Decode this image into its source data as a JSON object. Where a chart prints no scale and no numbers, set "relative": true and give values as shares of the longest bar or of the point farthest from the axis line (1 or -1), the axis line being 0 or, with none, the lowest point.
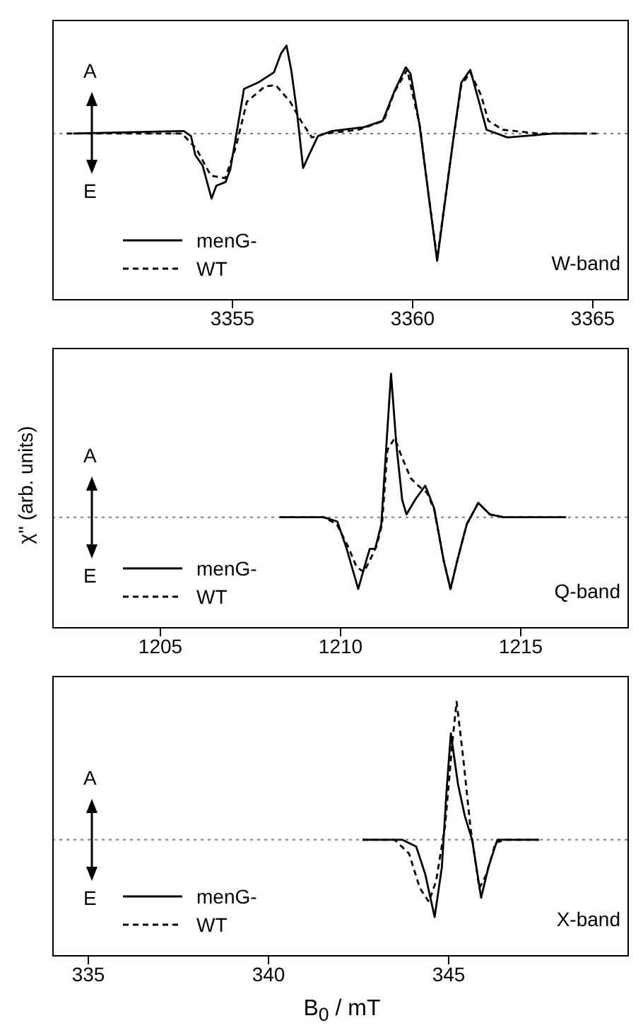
{
  "chart_data": [
    {
      "type": "line",
      "relative": true,
      "xlim": [
        3350,
        3366
      ],
      "xticks": [
        3355,
        3360,
        3365
      ],
      "legend": "bottom left",
      "grid": false,
      "annotations": [
        "A",
        "E",
        "W-band"
      ],
      "ref_lines": [
        {
          "axis": "y",
          "value": 0,
          "color": "#808080",
          "line_style": "dotted"
        }
      ],
      "series": [
        {
          "name": "menG-",
          "color": "#000000",
          "line_style": "solid",
          "x": [
            3350.58,
            3353.65,
            3353.85,
            3353.97,
            3354.17,
            3354.42,
            3354.55,
            3354.81,
            3354.94,
            3355.13,
            3355.32,
            3355.71,
            3356.15,
            3356.35,
            3356.5,
            3356.63,
            3356.79,
            3356.96,
            3357.12,
            3357.37,
            3357.76,
            3358.65,
            3359.17,
            3359.49,
            3359.81,
            3359.94,
            3360.19,
            3360.45,
            3360.68,
            3360.9,
            3361.15,
            3361.35,
            3361.6,
            3361.86,
            3362.05,
            3362.63,
            3363.91,
            3364.81
          ],
          "values": [
            0,
            0.02,
            -0.02,
            -0.17,
            -0.25,
            -0.51,
            -0.41,
            -0.38,
            -0.28,
            0.03,
            0.35,
            0.4,
            0.48,
            0.63,
            0.69,
            0.5,
            0.17,
            -0.27,
            -0.17,
            -0.02,
            0.02,
            0.05,
            0.1,
            0.33,
            0.52,
            0.47,
            0.07,
            -0.5,
            -1,
            -0.53,
            0,
            0.4,
            0.5,
            0.23,
            0.03,
            -0.03,
            0,
            0
          ]
        },
        {
          "name": "WT",
          "color": "#000000",
          "line_style": "dashed",
          "x": [
            3350.4,
            3353.6,
            3354,
            3354.4,
            3354.8,
            3355.1,
            3355.4,
            3355.9,
            3356.2,
            3356.6,
            3356.9,
            3357.2,
            3357.6,
            3358.5,
            3359.2,
            3359.5,
            3359.85,
            3360.2,
            3360.45,
            3360.68,
            3360.9,
            3361.15,
            3361.35,
            3361.6,
            3361.9,
            3362.1,
            3362.5,
            3363.5,
            3365.1
          ],
          "values": [
            0,
            0,
            -0.12,
            -0.33,
            -0.35,
            -0.1,
            0.25,
            0.37,
            0.38,
            0.25,
            0.1,
            -0.03,
            0,
            0.03,
            0.1,
            0.33,
            0.5,
            0.06,
            -0.5,
            -0.98,
            -0.52,
            0,
            0.38,
            0.48,
            0.3,
            0.1,
            0.03,
            0,
            0
          ]
        }
      ]
    },
    {
      "type": "line",
      "relative": true,
      "xlim": [
        1202,
        1218
      ],
      "xticks": [
        1205,
        1210,
        1215
      ],
      "ylabel": "χ'' (arb. units)",
      "legend": "bottom left",
      "grid": false,
      "annotations": [
        "A",
        "E",
        "Q-band"
      ],
      "ref_lines": [
        {
          "axis": "y",
          "value": 0,
          "color": "#808080",
          "line_style": "dotted"
        }
      ],
      "series": [
        {
          "name": "menG-",
          "color": "#000000",
          "line_style": "solid",
          "x": [
            1208.31,
            1209.53,
            1209.91,
            1210.17,
            1210.49,
            1210.68,
            1210.81,
            1210.96,
            1211.13,
            1211.26,
            1211.4,
            1211.55,
            1211.71,
            1211.83,
            1212.09,
            1212.35,
            1212.6,
            1212.86,
            1213.05,
            1213.24,
            1213.5,
            1213.82,
            1214.14,
            1214.53,
            1216.26
          ],
          "values": [
            0,
            0,
            -0.03,
            -0.22,
            -0.5,
            -0.33,
            -0.22,
            -0.22,
            -0.05,
            0.46,
            1,
            0.5,
            0.12,
            0.02,
            0.13,
            0.22,
            0.06,
            -0.3,
            -0.5,
            -0.3,
            -0.05,
            0.1,
            0.02,
            0,
            0
          ]
        },
        {
          "name": "WT",
          "color": "#000000",
          "line_style": "dashed",
          "x": [
            1208.31,
            1209.53,
            1209.9,
            1210.2,
            1210.45,
            1210.65,
            1210.85,
            1211,
            1211.15,
            1211.3,
            1211.5,
            1211.7,
            1211.95,
            1212.2,
            1212.4,
            1212.6,
            1212.86,
            1213.05,
            1213.24,
            1213.5,
            1213.82,
            1214.14,
            1214.53,
            1216.26
          ],
          "values": [
            0,
            0,
            -0.05,
            -0.2,
            -0.35,
            -0.38,
            -0.28,
            -0.2,
            -0.05,
            0.47,
            0.55,
            0.42,
            0.27,
            0.21,
            0.17,
            0.05,
            -0.3,
            -0.5,
            -0.3,
            -0.05,
            0.1,
            0.02,
            0,
            0
          ]
        }
      ]
    },
    {
      "type": "line",
      "relative": true,
      "xlim": [
        334,
        350
      ],
      "xticks": [
        335,
        340,
        345
      ],
      "xlabel": "B$_{0}$ / mT",
      "legend": "bottom left",
      "grid": false,
      "annotations": [
        "A",
        "E",
        "X-band"
      ],
      "ref_lines": [
        {
          "axis": "y",
          "value": 0,
          "color": "#808080",
          "line_style": "dotted"
        }
      ],
      "series": [
        {
          "name": "menG-",
          "color": "#000000",
          "line_style": "solid",
          "x": [
            342.61,
            343.71,
            344.1,
            344.35,
            344.61,
            344.81,
            344.94,
            345.06,
            345.26,
            345.45,
            345.65,
            345.9,
            346.1,
            346.35,
            347.5
          ],
          "values": [
            0,
            0,
            -0.05,
            -0.25,
            -0.56,
            -0.2,
            0.35,
            0.77,
            0.4,
            0.17,
            0,
            -0.42,
            -0.2,
            0,
            0
          ]
        },
        {
          "name": "WT",
          "color": "#000000",
          "line_style": "dashed",
          "x": [
            342.61,
            343.5,
            343.9,
            344.2,
            344.45,
            344.65,
            344.9,
            345.1,
            345.22,
            345.4,
            345.6,
            345.85,
            346.05,
            346.3,
            346.6,
            347.5
          ],
          "values": [
            0,
            0,
            -0.1,
            -0.35,
            -0.45,
            -0.3,
            0.1,
            0.7,
            1,
            0.6,
            0.1,
            -0.35,
            -0.25,
            -0.02,
            0,
            0
          ]
        }
      ]
    }
  ]
}
